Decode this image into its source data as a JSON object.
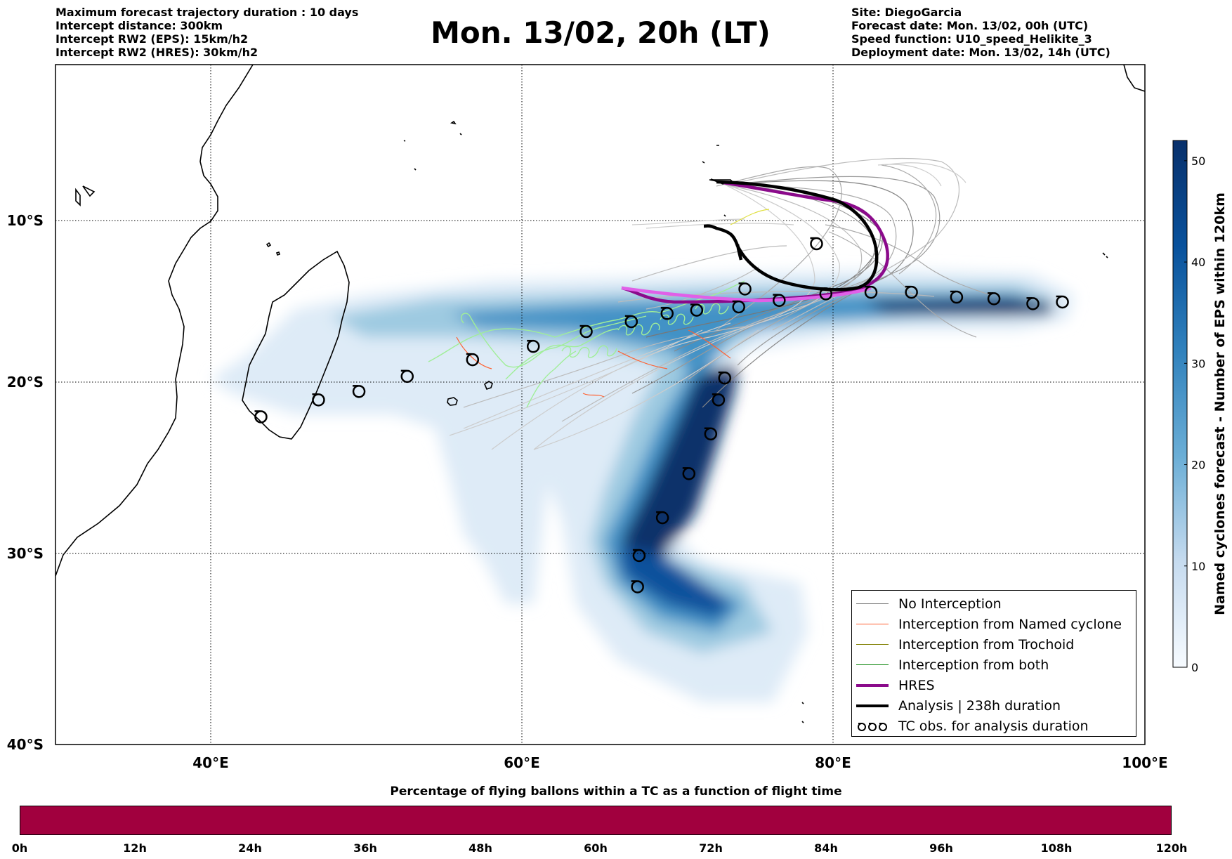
{
  "header": {
    "left_lines": [
      "Maximum forecast trajectory duration : 10 days",
      "Intercept distance: 300km",
      "Intercept RW2 (EPS):  15km/h2",
      "Intercept RW2 (HRES): 30km/h2"
    ],
    "title": "Mon. 13/02, 20h (LT)",
    "right_lines": [
      "Site: DiegoGarcia",
      "Forecast date: Mon. 13/02, 00h (UTC)",
      "Speed function: U10_speed_Helikite_3",
      "Deployment date: Mon. 13/02, 14h (UTC)"
    ]
  },
  "map": {
    "lat_labels": [
      "10°S",
      "20°S",
      "30°S",
      "40°S"
    ],
    "lon_labels": [
      "40°E",
      "60°E",
      "80°E",
      "100°E"
    ],
    "lon_range": [
      30,
      100
    ],
    "lat_range": [
      -40,
      -0.5
    ],
    "gridlines": true,
    "colors": {
      "no_interception": "#808080",
      "named_cyclone": "#ff6030",
      "trochoid": "#808000",
      "both": "#008000",
      "hres": "#8b0a8b",
      "hres_path": "#e060e8",
      "analysis": "#000000",
      "eps_light": "#deebf7",
      "eps_dark": "#08306b"
    },
    "tc_observations_southern": [
      [
        43.2,
        -22.3
      ],
      [
        46.9,
        -21.3
      ],
      [
        49.5,
        -20.8
      ],
      [
        52.6,
        -19.9
      ],
      [
        56.8,
        -18.9
      ],
      [
        60.7,
        -18.1
      ],
      [
        64.1,
        -17.2
      ],
      [
        67.0,
        -16.6
      ],
      [
        69.3,
        -16.1
      ],
      [
        71.2,
        -15.9
      ],
      [
        73.9,
        -15.7
      ],
      [
        76.5,
        -15.3
      ],
      [
        79.5,
        -14.9
      ],
      [
        82.4,
        -14.8
      ],
      [
        85.0,
        -14.8
      ],
      [
        87.9,
        -15.1
      ],
      [
        90.3,
        -15.2
      ],
      [
        92.8,
        -15.5
      ],
      [
        94.7,
        -15.4
      ],
      [
        74.3,
        -14.6
      ]
    ],
    "tc_observations_second": [
      [
        73.0,
        -20.0
      ],
      [
        72.6,
        -21.3
      ],
      [
        72.1,
        -23.3
      ],
      [
        70.7,
        -25.6
      ],
      [
        69.0,
        -28.1
      ],
      [
        67.5,
        -30.2
      ],
      [
        67.4,
        -31.9
      ]
    ],
    "tc_observation_isolated": [
      [
        78.9,
        -11.8
      ]
    ],
    "site": [
      72.4,
      -7.3
    ]
  },
  "colorbar": {
    "title": "Named cyclones forecast - Number of EPS within 120km",
    "ticks": [
      "0",
      "10",
      "20",
      "30",
      "40",
      "50"
    ],
    "max": 52
  },
  "legend": {
    "items": [
      {
        "label": "No Interception",
        "kind": "line",
        "color": "#808080",
        "width": 1.2
      },
      {
        "label": "Interception from Named cyclone",
        "kind": "line",
        "color": "#ff6030",
        "width": 1.2
      },
      {
        "label": "Interception from Trochoid",
        "kind": "line",
        "color": "#808000",
        "width": 1.2
      },
      {
        "label": "Interception from both",
        "kind": "line",
        "color": "#008000",
        "width": 1.2
      },
      {
        "label": "HRES",
        "kind": "line",
        "color": "#8b0a8b",
        "width": 4
      },
      {
        "label": "Analysis | 238h duration",
        "kind": "line",
        "color": "#000000",
        "width": 4
      },
      {
        "label": "TC obs. for analysis duration",
        "kind": "tc"
      }
    ]
  },
  "time_bar": {
    "title": "Percentage of flying ballons within a TC as a function of flight time",
    "ticks": [
      "0h",
      "12h",
      "24h",
      "36h",
      "48h",
      "60h",
      "72h",
      "84h",
      "96h",
      "108h",
      "120h"
    ],
    "color": "#a1003e"
  }
}
